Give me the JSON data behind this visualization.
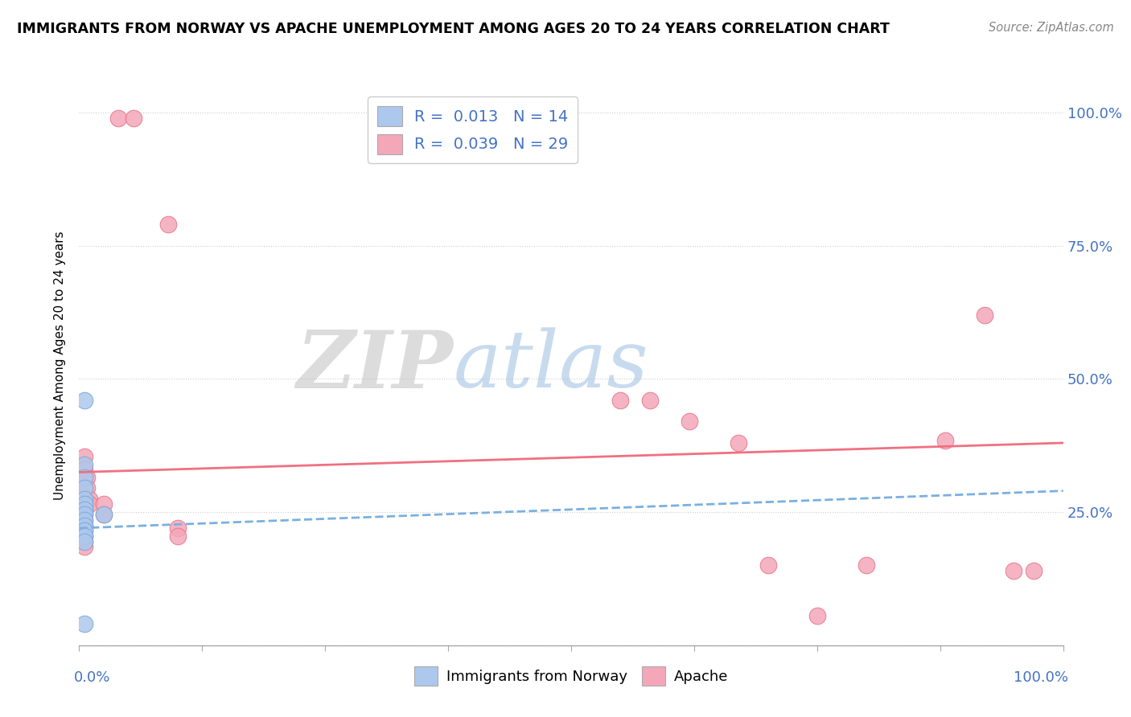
{
  "title": "IMMIGRANTS FROM NORWAY VS APACHE UNEMPLOYMENT AMONG AGES 20 TO 24 YEARS CORRELATION CHART",
  "source": "Source: ZipAtlas.com",
  "ylabel": "Unemployment Among Ages 20 to 24 years",
  "xlim": [
    0,
    1.0
  ],
  "ylim": [
    0.0,
    1.05
  ],
  "yticks": [
    0.0,
    0.25,
    0.5,
    0.75,
    1.0
  ],
  "ytick_labels": [
    "",
    "25.0%",
    "50.0%",
    "75.0%",
    "100.0%"
  ],
  "watermark_zip": "ZIP",
  "watermark_atlas": "atlas",
  "blue_color": "#adc8ed",
  "pink_color": "#f4a7b9",
  "blue_edge": "#7aaad8",
  "pink_edge": "#e8788a",
  "line_blue_color": "#7ab0e0",
  "line_pink_color": "#f07080",
  "norway_points": [
    [
      0.005,
      0.46
    ],
    [
      0.005,
      0.34
    ],
    [
      0.005,
      0.315
    ],
    [
      0.005,
      0.295
    ],
    [
      0.005,
      0.275
    ],
    [
      0.005,
      0.265
    ],
    [
      0.005,
      0.255
    ],
    [
      0.005,
      0.245
    ],
    [
      0.005,
      0.235
    ],
    [
      0.005,
      0.225
    ],
    [
      0.005,
      0.215
    ],
    [
      0.005,
      0.205
    ],
    [
      0.005,
      0.195
    ],
    [
      0.005,
      0.04
    ],
    [
      0.025,
      0.245
    ]
  ],
  "apache_points": [
    [
      0.04,
      0.99
    ],
    [
      0.055,
      0.99
    ],
    [
      0.09,
      0.79
    ],
    [
      0.005,
      0.355
    ],
    [
      0.005,
      0.33
    ],
    [
      0.008,
      0.315
    ],
    [
      0.008,
      0.295
    ],
    [
      0.01,
      0.275
    ],
    [
      0.01,
      0.265
    ],
    [
      0.005,
      0.255
    ],
    [
      0.005,
      0.245
    ],
    [
      0.005,
      0.235
    ],
    [
      0.005,
      0.225
    ],
    [
      0.005,
      0.215
    ],
    [
      0.005,
      0.205
    ],
    [
      0.005,
      0.195
    ],
    [
      0.005,
      0.185
    ],
    [
      0.025,
      0.265
    ],
    [
      0.025,
      0.245
    ],
    [
      0.1,
      0.22
    ],
    [
      0.1,
      0.205
    ],
    [
      0.55,
      0.46
    ],
    [
      0.58,
      0.46
    ],
    [
      0.62,
      0.42
    ],
    [
      0.67,
      0.38
    ],
    [
      0.88,
      0.385
    ],
    [
      0.92,
      0.62
    ],
    [
      0.95,
      0.14
    ],
    [
      0.97,
      0.14
    ],
    [
      0.7,
      0.15
    ],
    [
      0.8,
      0.15
    ],
    [
      0.75,
      0.055
    ]
  ],
  "norway_line_x": [
    0.0,
    1.0
  ],
  "norway_line_y": [
    0.22,
    0.29
  ],
  "apache_line_x": [
    0.0,
    1.0
  ],
  "apache_line_y": [
    0.325,
    0.38
  ]
}
